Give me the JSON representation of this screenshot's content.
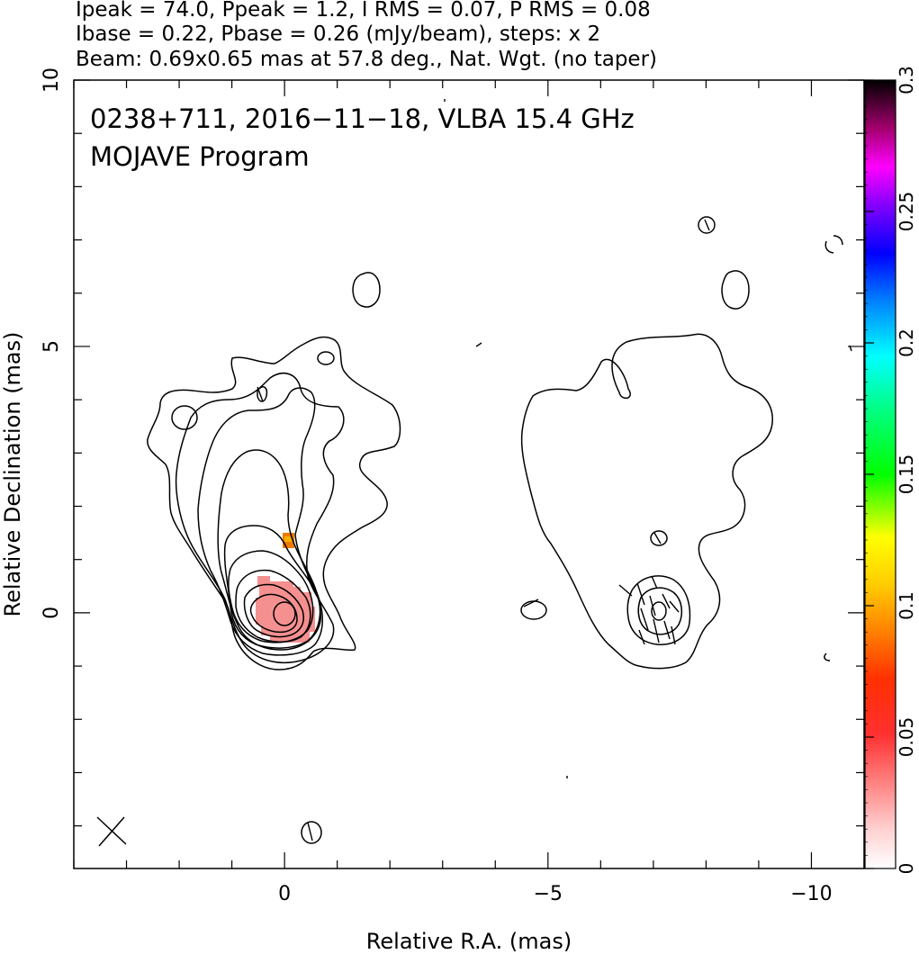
{
  "header": {
    "line1": "Ipeak = 74.0, Ppeak = 1.2, I RMS = 0.07, P RMS = 0.08",
    "line2": "Ibase = 0.22, Pbase = 0.26 (mJy/beam), steps: x 2",
    "line3": "Beam: 0.69x0.65 mas at 57.8 deg., Nat. Wgt. (no taper)"
  },
  "annotation": {
    "line1": "0238+711, 2016−11−18, VLBA 15.4 GHz",
    "line2": "MOJAVE Program"
  },
  "chart_data": {
    "type": "heatmap",
    "description_free": true,
    "xlabel": "Relative R.A. (mas)",
    "ylabel": "Relative Declination (mas)",
    "xlim": [
      4.0,
      -11.0
    ],
    "ylim": [
      -4.8,
      10.0
    ],
    "x_ticks": [
      {
        "value": 0,
        "label": "0"
      },
      {
        "value": -5,
        "label": "−5"
      },
      {
        "value": -10,
        "label": "−10"
      }
    ],
    "y_ticks": [
      {
        "value": 0,
        "label": "0"
      },
      {
        "value": 5,
        "label": "5"
      },
      {
        "value": 10,
        "label": "10"
      }
    ],
    "colorbar": {
      "range": [
        0,
        0.3
      ],
      "ticks": [
        {
          "value": 0,
          "label": "0"
        },
        {
          "value": 0.05,
          "label": "0.05"
        },
        {
          "value": 0.1,
          "label": "0.1"
        },
        {
          "value": 0.15,
          "label": "0.15"
        },
        {
          "value": 0.2,
          "label": "0.2"
        },
        {
          "value": 0.25,
          "label": "0.25"
        },
        {
          "value": 0.3,
          "label": "0.3"
        }
      ]
    },
    "contour_base_mJy_per_beam": 0.22,
    "contour_step_factor": 2,
    "peak_intensity_mJy_per_beam": 74.0,
    "polarized_peak_mJy_per_beam": 1.2,
    "beam": {
      "major_mas": 0.69,
      "minor_mas": 0.65,
      "pa_deg": 57.8
    },
    "core_position": [
      0,
      0
    ],
    "second_component_position": [
      -7.0,
      0.1
    ]
  }
}
